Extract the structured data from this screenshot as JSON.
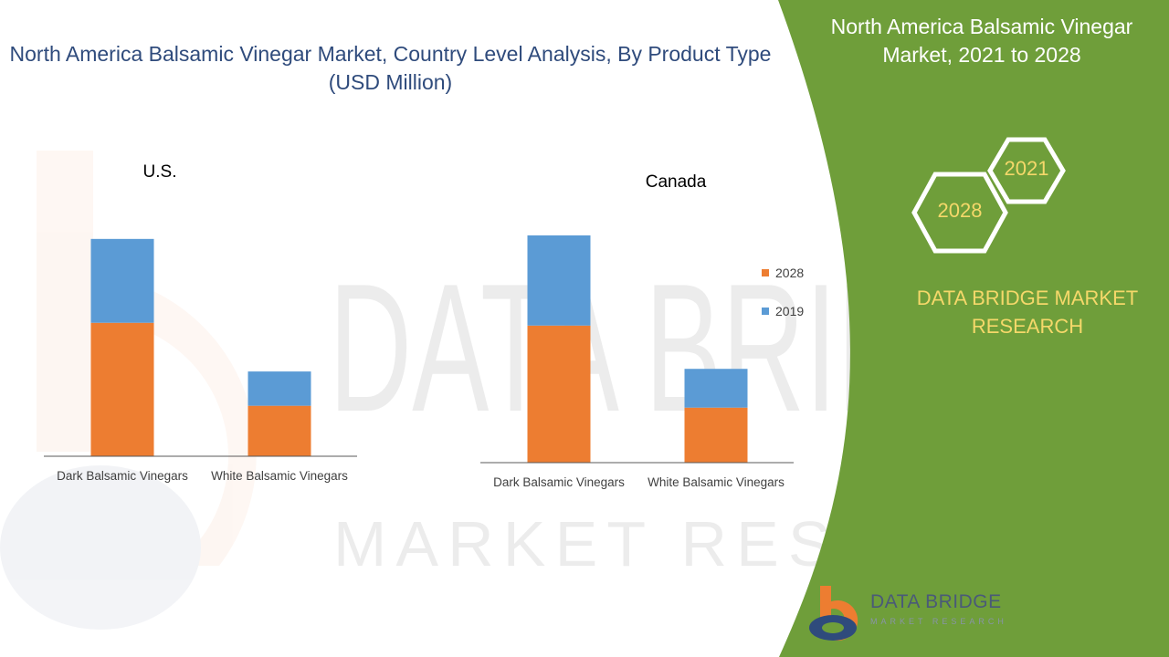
{
  "title": "North America Balsamic Vinegar Market, Country Level Analysis, By Product Type (USD Million)",
  "side_panel": {
    "title": "North America Balsamic Vinegar Market, 2021 to 2028",
    "hex_year_1": "2021",
    "hex_year_2": "2028",
    "brand": "DATA BRIDGE MARKET RESEARCH",
    "logo_name": "DATA BRIDGE",
    "logo_sub": "MARKET RESEARCH"
  },
  "watermark": {
    "line1": "DATA BRIDGE",
    "line2": "MARKET RESEARCH"
  },
  "colors": {
    "series_2028": "#ed7d31",
    "series_2019": "#5b9bd5",
    "panel_green": "#6f9e3a",
    "title_blue": "#2f4b7c",
    "accent_yellow": "#f5d86a"
  },
  "legend": {
    "position": "right",
    "entries": [
      "2028",
      "2019"
    ]
  },
  "chart_data": [
    {
      "type": "bar",
      "stacked": true,
      "title": "U.S.",
      "categories": [
        "Dark Balsamic Vinegars",
        "White Balsamic Vinegars"
      ],
      "series": [
        {
          "name": "2028",
          "values": [
            148,
            56
          ]
        },
        {
          "name": "2019",
          "values": [
            93,
            38
          ]
        }
      ],
      "ylim": [
        0,
        340
      ],
      "grid": false,
      "y_axis_visible": false
    },
    {
      "type": "bar",
      "stacked": true,
      "title": "Canada",
      "categories": [
        "Dark Balsamic Vinegars",
        "White Balsamic Vinegars"
      ],
      "series": [
        {
          "name": "2028",
          "values": [
            152,
            61
          ]
        },
        {
          "name": "2019",
          "values": [
            100,
            43
          ]
        }
      ],
      "ylim": [
        0,
        340
      ],
      "grid": false,
      "y_axis_visible": false
    }
  ]
}
